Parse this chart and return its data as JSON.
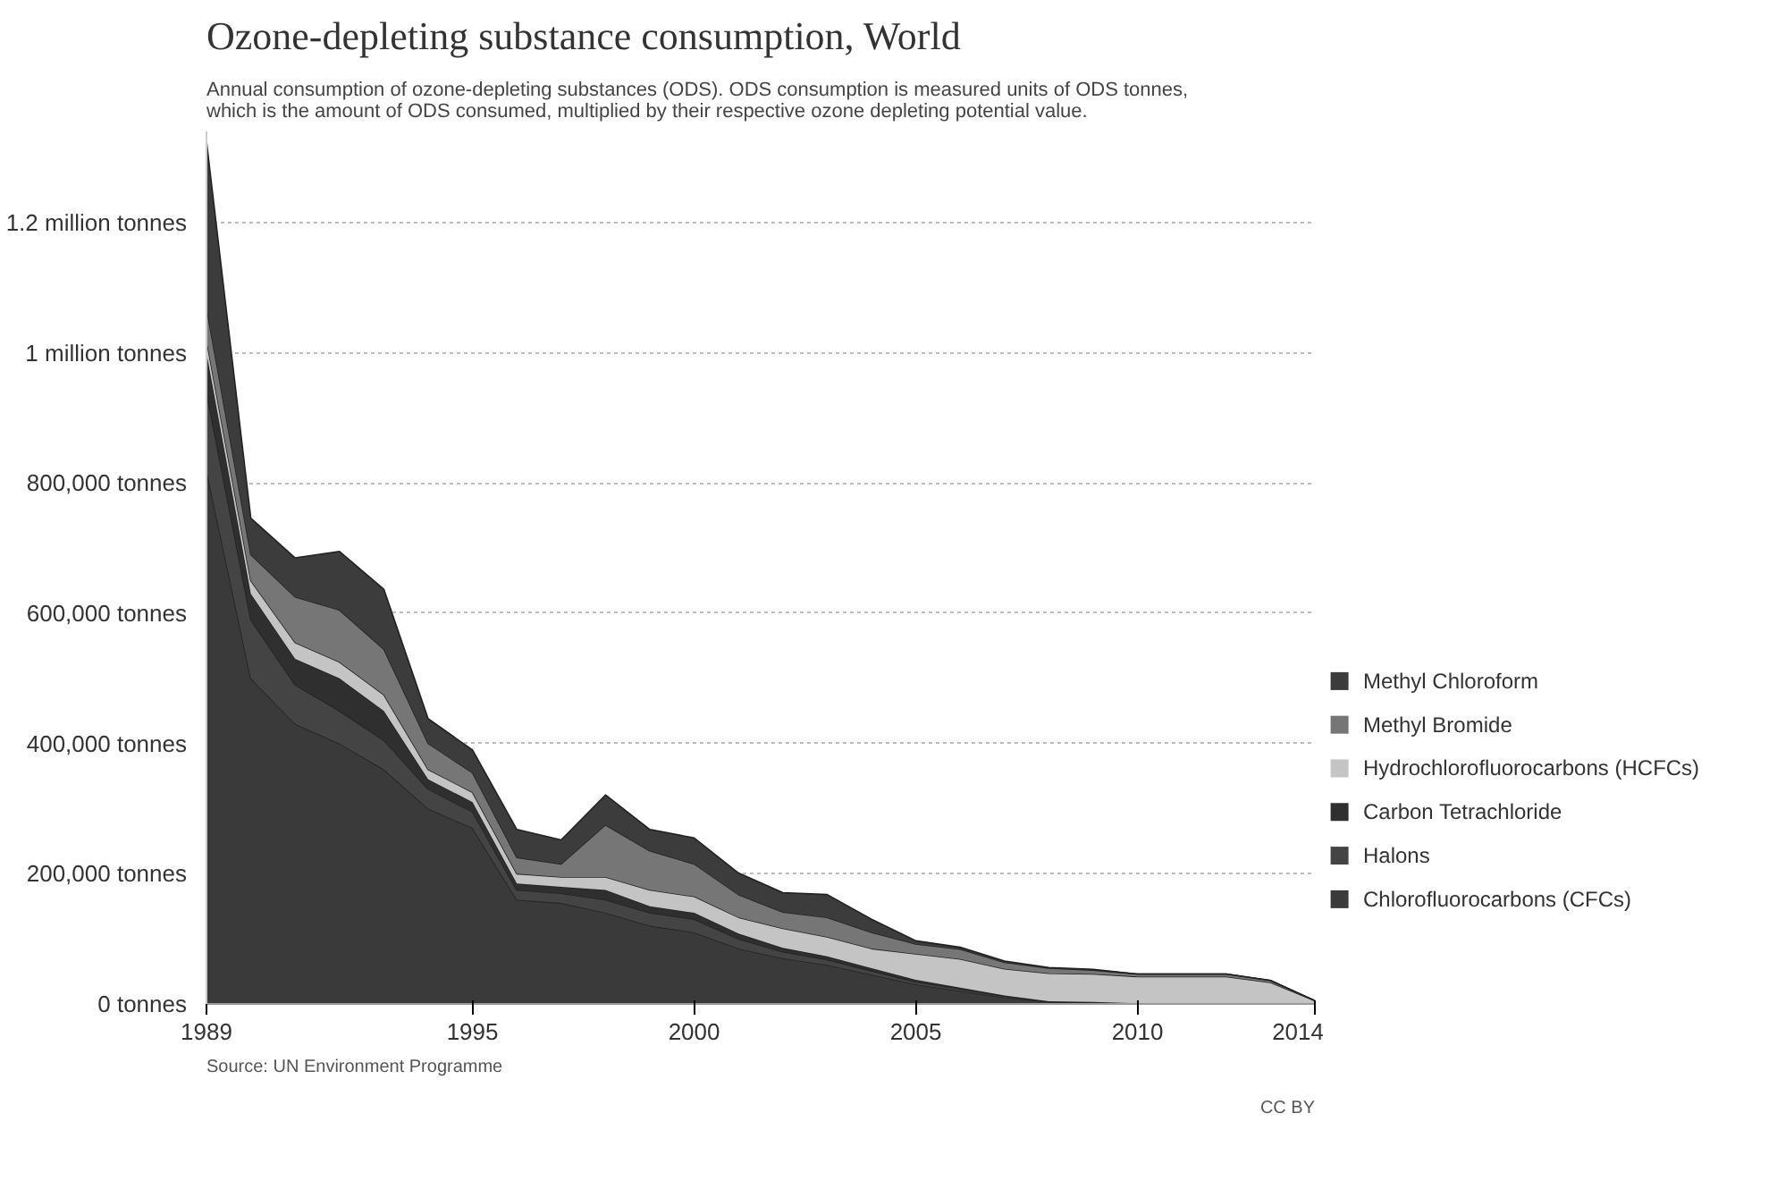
{
  "chart_data": {
    "type": "area",
    "stacked": true,
    "title": "Ozone-depleting substance consumption, World",
    "subtitle": "Annual consumption of ozone-depleting substances (ODS). ODS consumption is measured units of ODS tonnes,\nwhich is the amount of ODS consumed, multiplied by their respective ozone depleting potential value.",
    "x": [
      1989,
      1990,
      1991,
      1992,
      1993,
      1994,
      1995,
      1996,
      1997,
      1998,
      1999,
      2000,
      2001,
      2002,
      2003,
      2004,
      2005,
      2006,
      2007,
      2008,
      2009,
      2010,
      2011,
      2012,
      2013,
      2014
    ],
    "series": [
      {
        "name": "Chlorofluorocarbons (CFCs)",
        "color": "#3a3a3a",
        "values": [
          820000,
          500000,
          430000,
          400000,
          360000,
          300000,
          270000,
          160000,
          155000,
          140000,
          120000,
          110000,
          85000,
          70000,
          60000,
          45000,
          30000,
          20000,
          10000,
          3000,
          2000,
          1000,
          0,
          0,
          0,
          0
        ]
      },
      {
        "name": "Halons",
        "color": "#444444",
        "values": [
          120000,
          90000,
          60000,
          50000,
          45000,
          30000,
          25000,
          15000,
          15000,
          20000,
          20000,
          20000,
          15000,
          10000,
          8000,
          6000,
          4000,
          3000,
          2000,
          1000,
          1000,
          0,
          0,
          0,
          0,
          0
        ]
      },
      {
        "name": "Carbon Tetrachloride",
        "color": "#2f2f2f",
        "values": [
          60000,
          40000,
          40000,
          50000,
          45000,
          15000,
          15000,
          10000,
          10000,
          15000,
          10000,
          10000,
          8000,
          6000,
          5000,
          4000,
          3000,
          2000,
          1000,
          0,
          0,
          0,
          0,
          0,
          0,
          0
        ]
      },
      {
        "name": "Hydrochlorofluorocarbons (HCFCs)",
        "color": "#c4c4c4",
        "values": [
          20000,
          20000,
          25000,
          25000,
          25000,
          15000,
          15000,
          15000,
          15000,
          20000,
          25000,
          25000,
          25000,
          30000,
          30000,
          30000,
          40000,
          44000,
          41000,
          43000,
          43000,
          41000,
          42000,
          42000,
          33000,
          5000
        ]
      },
      {
        "name": "Methyl Bromide",
        "color": "#767676",
        "values": [
          50000,
          40000,
          70000,
          80000,
          70000,
          40000,
          30000,
          25000,
          20000,
          80000,
          60000,
          50000,
          35000,
          25000,
          30000,
          25000,
          15000,
          15000,
          10000,
          8000,
          6000,
          4000,
          4000,
          4000,
          3000,
          0
        ]
      },
      {
        "name": "Methyl Chloroform",
        "color": "#3c3c3c",
        "values": [
          255000,
          56000,
          60000,
          90000,
          92000,
          38000,
          35000,
          43000,
          37000,
          46000,
          33000,
          40000,
          33000,
          30000,
          35000,
          20000,
          5000,
          3000,
          2000,
          1000,
          1000,
          0,
          0,
          0,
          0,
          0
        ]
      }
    ],
    "xlim": [
      1989,
      2014
    ],
    "xticks": [
      1989,
      1995,
      2000,
      2005,
      2010,
      2014
    ],
    "ylim": [
      0,
      1340000
    ],
    "yticks": [
      {
        "value": 0,
        "label": "0 tonnes"
      },
      {
        "value": 200000,
        "label": "200,000 tonnes"
      },
      {
        "value": 400000,
        "label": "400,000 tonnes"
      },
      {
        "value": 600000,
        "label": "600,000 tonnes"
      },
      {
        "value": 800000,
        "label": "800,000 tonnes"
      },
      {
        "value": 1000000,
        "label": "1 million tonnes"
      },
      {
        "value": 1200000,
        "label": "1.2 million tonnes"
      }
    ],
    "grid": "y",
    "legend": "right",
    "annotations": [
      "Source: UN Environment Programme",
      "CC BY"
    ]
  }
}
